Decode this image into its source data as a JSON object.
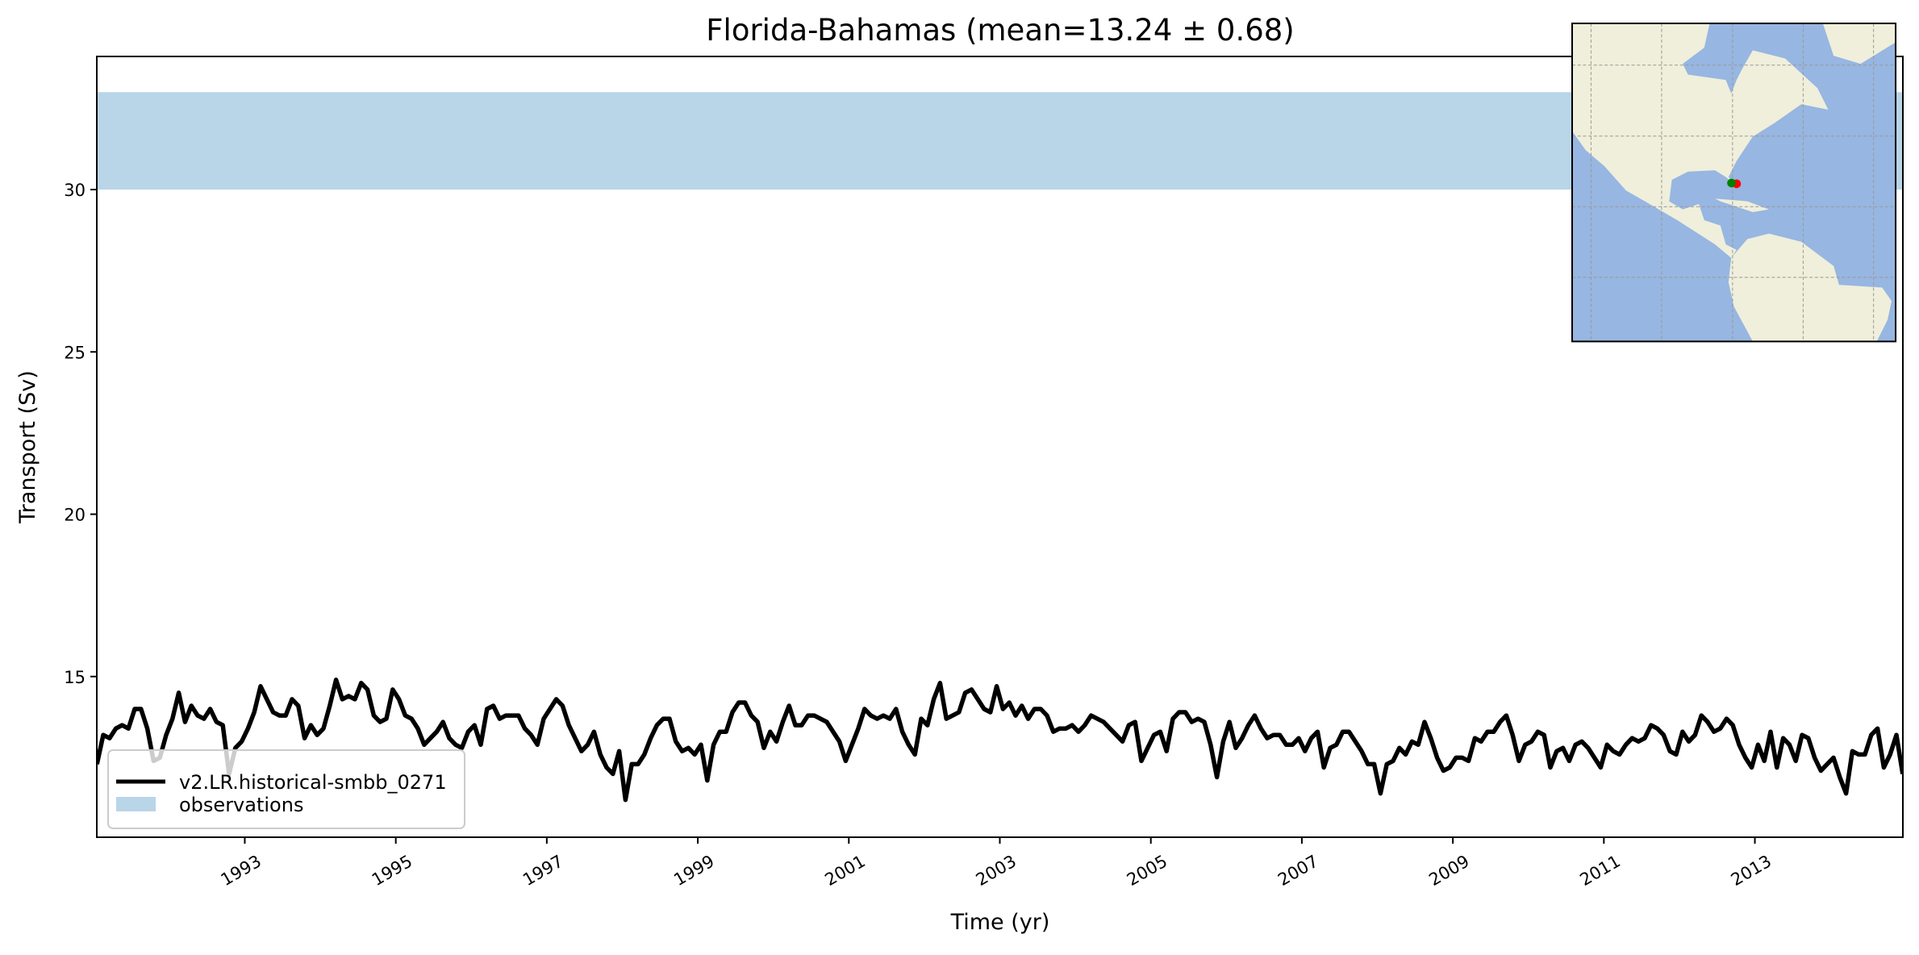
{
  "chart_data": {
    "type": "line",
    "title": "Florida-Bahamas (mean=13.24 ± 0.68)",
    "xlabel": "Time (yr)",
    "ylabel": "Transport (Sv)",
    "xlim": [
      1991.04,
      2014.96
    ],
    "ylim": [
      10.05,
      34.1
    ],
    "grid": false,
    "legend_placement": "lower-left",
    "yticks": [
      15,
      20,
      25,
      30
    ],
    "xticks": [
      1993,
      1995,
      1997,
      1999,
      2001,
      2003,
      2005,
      2007,
      2009,
      2011,
      2013
    ],
    "xtick_labels": [
      "1993",
      "1995",
      "1997",
      "1999",
      "2001",
      "2003",
      "2005",
      "2007",
      "2009",
      "2011",
      "2013"
    ],
    "start_year": 1991,
    "observations": {
      "name": "observations",
      "range": [
        30,
        33
      ],
      "color": "#b9d5e8"
    },
    "series": [
      {
        "name": "v2.LR.historical-smbb_0271",
        "color": "#000000",
        "frequency": "monthly",
        "values": [
          12.3,
          13.2,
          13.1,
          13.4,
          13.5,
          13.4,
          14.0,
          14.0,
          13.4,
          12.4,
          12.5,
          13.2,
          13.7,
          14.5,
          13.6,
          14.1,
          13.8,
          13.7,
          14.0,
          13.6,
          13.5,
          12.0,
          12.8,
          13.0,
          13.4,
          13.9,
          14.7,
          14.3,
          13.9,
          13.8,
          13.8,
          14.3,
          14.1,
          13.1,
          13.5,
          13.2,
          13.4,
          14.1,
          14.9,
          14.3,
          14.4,
          14.3,
          14.8,
          14.6,
          13.8,
          13.6,
          13.7,
          14.6,
          14.3,
          13.8,
          13.7,
          13.4,
          12.9,
          13.1,
          13.3,
          13.6,
          13.1,
          12.9,
          12.8,
          13.3,
          13.5,
          12.9,
          14.0,
          14.1,
          13.7,
          13.8,
          13.8,
          13.8,
          13.4,
          13.2,
          12.9,
          13.7,
          14.0,
          14.3,
          14.1,
          13.5,
          13.1,
          12.7,
          12.9,
          13.3,
          12.6,
          12.2,
          12.0,
          12.7,
          11.2,
          12.3,
          12.3,
          12.6,
          13.1,
          13.5,
          13.7,
          13.7,
          13.0,
          12.7,
          12.8,
          12.6,
          12.9,
          11.8,
          12.9,
          13.3,
          13.3,
          13.9,
          14.2,
          14.2,
          13.8,
          13.6,
          12.8,
          13.3,
          13.0,
          13.6,
          14.1,
          13.5,
          13.5,
          13.8,
          13.8,
          13.7,
          13.6,
          13.3,
          13.0,
          12.4,
          12.9,
          13.4,
          14.0,
          13.8,
          13.7,
          13.8,
          13.7,
          14.0,
          13.3,
          12.9,
          12.6,
          13.7,
          13.5,
          14.3,
          14.8,
          13.7,
          13.8,
          13.9,
          14.5,
          14.6,
          14.3,
          14.0,
          13.9,
          14.7,
          14.0,
          14.2,
          13.8,
          14.1,
          13.7,
          14.0,
          14.0,
          13.8,
          13.3,
          13.4,
          13.4,
          13.5,
          13.3,
          13.5,
          13.8,
          13.7,
          13.6,
          13.4,
          13.2,
          13.0,
          13.5,
          13.6,
          12.4,
          12.8,
          13.2,
          13.3,
          12.7,
          13.7,
          13.9,
          13.9,
          13.6,
          13.7,
          13.6,
          12.9,
          11.9,
          13.0,
          13.6,
          12.8,
          13.1,
          13.5,
          13.8,
          13.4,
          13.1,
          13.2,
          13.2,
          12.9,
          12.9,
          13.1,
          12.7,
          13.1,
          13.3,
          12.2,
          12.8,
          12.9,
          13.3,
          13.3,
          13.0,
          12.7,
          12.3,
          12.3,
          11.4,
          12.3,
          12.4,
          12.8,
          12.6,
          13.0,
          12.9,
          13.6,
          13.1,
          12.5,
          12.1,
          12.2,
          12.5,
          12.5,
          12.4,
          13.1,
          13.0,
          13.3,
          13.3,
          13.6,
          13.8,
          13.2,
          12.4,
          12.9,
          13.0,
          13.3,
          13.2,
          12.2,
          12.7,
          12.8,
          12.4,
          12.9,
          13.0,
          12.8,
          12.5,
          12.2,
          12.9,
          12.7,
          12.6,
          12.9,
          13.1,
          13.0,
          13.1,
          13.5,
          13.4,
          13.2,
          12.7,
          12.6,
          13.3,
          13.0,
          13.2,
          13.8,
          13.6,
          13.3,
          13.4,
          13.7,
          13.5,
          12.9,
          12.5,
          12.2,
          12.9,
          12.4,
          13.3,
          12.2,
          13.1,
          12.9,
          12.4,
          13.2,
          13.1,
          12.5,
          12.1,
          12.3,
          12.5,
          11.9,
          11.4,
          12.7,
          12.6,
          12.6,
          13.2,
          13.4,
          12.2,
          12.6,
          13.2,
          12.0
        ]
      }
    ],
    "inset_map": {
      "ocean_color": "#97b6e1",
      "land_color": "#efefdb",
      "markers": [
        {
          "name": "model-section",
          "color": "#008000"
        },
        {
          "name": "observation-section",
          "color": "#ff0000"
        }
      ]
    }
  }
}
